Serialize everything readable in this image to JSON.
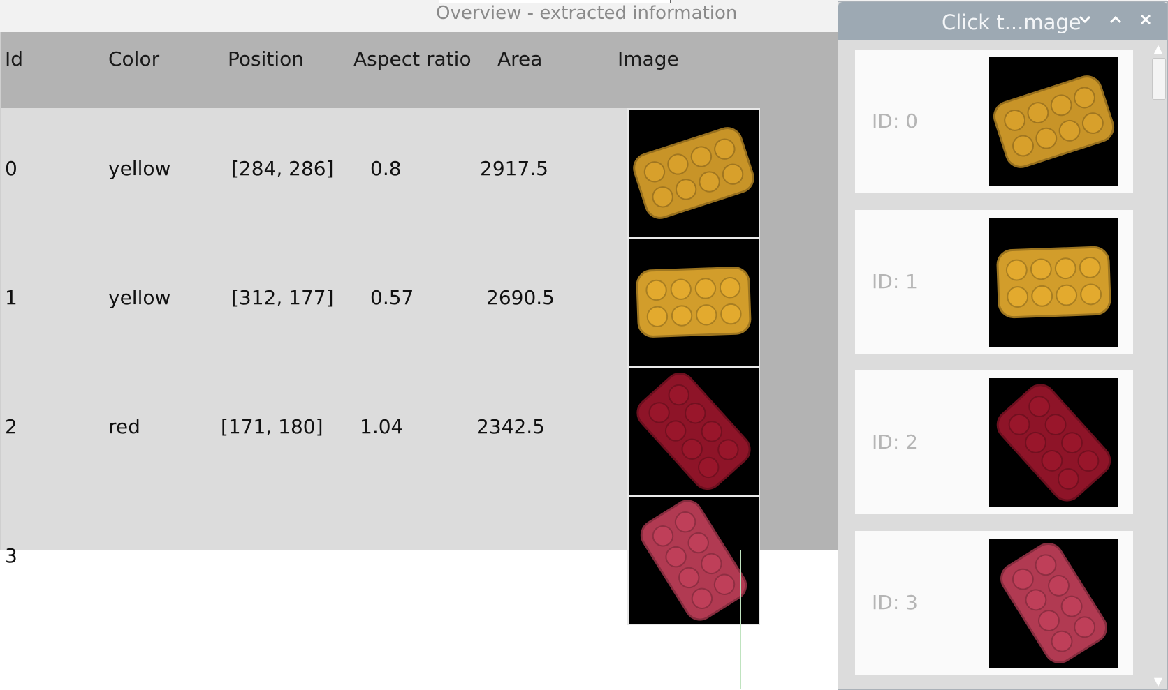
{
  "window": {
    "title": "Overview - extracted information"
  },
  "table": {
    "headers": [
      "Id",
      "Color",
      "Position",
      "Aspect ratio",
      "Area",
      "Image"
    ],
    "rows": [
      {
        "id": "0",
        "color": "yellow",
        "position": "[284, 286]",
        "aspect_ratio": "0.8",
        "area": "2917.5",
        "image_color": "#c89428"
      },
      {
        "id": "1",
        "color": "yellow",
        "position": "[312, 177]",
        "aspect_ratio": "0.57",
        "area": "2690.5",
        "image_color": "#d29d2b"
      },
      {
        "id": "2",
        "color": "red",
        "position": "[171, 180]",
        "aspect_ratio": "1.04",
        "area": "2342.5",
        "image_color": "#8e1428"
      },
      {
        "id": "3",
        "color": "",
        "position": "",
        "aspect_ratio": "",
        "area": "",
        "image_color": "#b13a52"
      }
    ]
  },
  "panel": {
    "title": "Click t...mage",
    "minimize_icon": "chevron-down-icon",
    "maximize_icon": "chevron-up-icon",
    "close_icon": "close-icon",
    "items": [
      {
        "label": "ID: 0",
        "image_color": "#c89428"
      },
      {
        "label": "ID: 1",
        "image_color": "#d29d2b"
      },
      {
        "label": "ID: 2",
        "image_color": "#8e1428"
      },
      {
        "label": "ID: 3",
        "image_color": "#b13a52"
      }
    ]
  }
}
